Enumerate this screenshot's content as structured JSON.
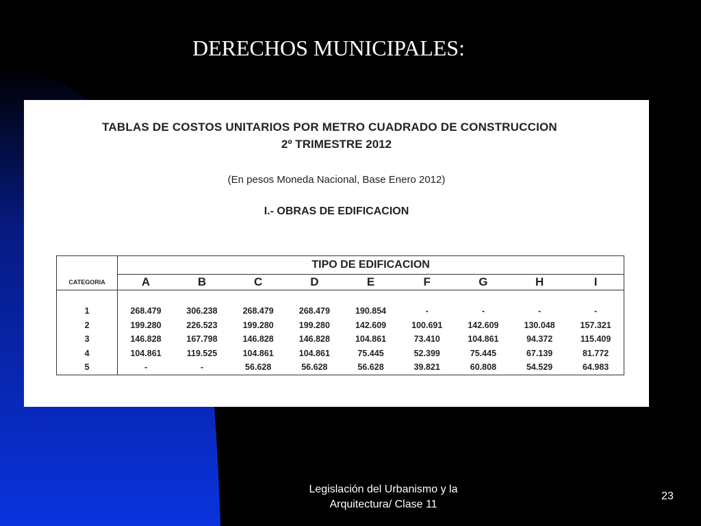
{
  "slide": {
    "title": "DERECHOS MUNICIPALES:",
    "footer_line1": "Legislación del Urbanismo y la",
    "footer_line2": "Arquitectura/ Clase 11",
    "page_number": "23",
    "colors": {
      "background": "#000000",
      "accent": "#0a2fd6",
      "text": "#ffffff"
    }
  },
  "table_image": {
    "heading": "TABLAS DE COSTOS UNITARIOS POR METRO CUADRADO DE CONSTRUCCION",
    "subheading": "2º TRIMESTRE 2012",
    "note": "(En pesos Moneda Nacional, Base Enero 2012)",
    "section": "I.- OBRAS DE EDIFICACION",
    "group_header": "TIPO DE EDIFICACION",
    "category_header": "CATEGORIA",
    "columns": [
      "A",
      "B",
      "C",
      "D",
      "E",
      "F",
      "G",
      "H",
      "I"
    ],
    "rows": [
      {
        "cat": "1",
        "values": [
          "268.479",
          "306.238",
          "268.479",
          "268.479",
          "190.854",
          "-",
          "-",
          "-",
          "-"
        ]
      },
      {
        "cat": "2",
        "values": [
          "199.280",
          "226.523",
          "199.280",
          "199.280",
          "142.609",
          "100.691",
          "142.609",
          "130.048",
          "157.321"
        ]
      },
      {
        "cat": "3",
        "values": [
          "146.828",
          "167.798",
          "146.828",
          "146.828",
          "104.861",
          "73.410",
          "104.861",
          "94.372",
          "115.409"
        ]
      },
      {
        "cat": "4",
        "values": [
          "104.861",
          "119.525",
          "104.861",
          "104.861",
          "75.445",
          "52.399",
          "75.445",
          "67.139",
          "81.772"
        ]
      },
      {
        "cat": "5",
        "values": [
          "-",
          "-",
          "56.628",
          "56.628",
          "56.628",
          "39.821",
          "60.808",
          "54.529",
          "64.983"
        ]
      }
    ]
  }
}
